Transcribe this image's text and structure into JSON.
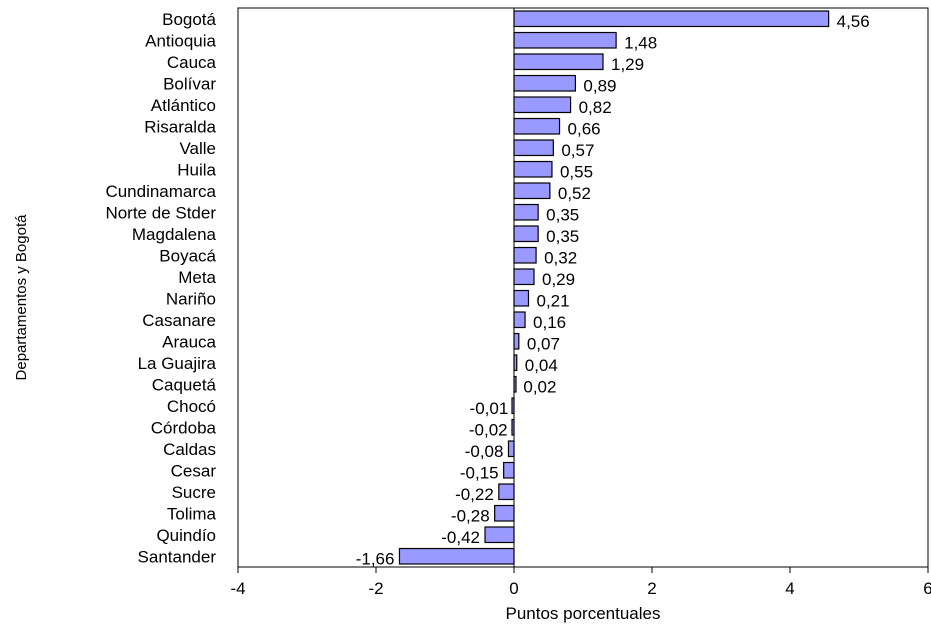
{
  "chart_data": {
    "type": "bar",
    "orientation": "horizontal",
    "title": "",
    "xlabel": "Puntos porcentuales",
    "ylabel": "Departamentos y Bogotá",
    "xlim": [
      -4,
      6
    ],
    "xticks": [
      "-4",
      "-2",
      "0",
      "2",
      "4",
      "6"
    ],
    "grid": false,
    "bar_color": "#9999ff",
    "bar_edge_color": "#000000",
    "categories": [
      "Bogotá",
      "Antioquia",
      "Cauca",
      "Bolívar",
      "Atlántico",
      "Risaralda",
      "Valle",
      "Huila",
      "Cundinamarca",
      "Norte de Stder",
      "Magdalena",
      "Boyacá",
      "Meta",
      "Nariño",
      "Casanare",
      "Arauca",
      "La Guajira",
      "Caquetá",
      "Chocó",
      "Córdoba",
      "Caldas",
      "Cesar",
      "Sucre",
      "Tolima",
      "Quindío",
      "Santander"
    ],
    "values": [
      4.56,
      1.48,
      1.29,
      0.89,
      0.82,
      0.66,
      0.57,
      0.55,
      0.52,
      0.35,
      0.35,
      0.32,
      0.29,
      0.21,
      0.16,
      0.07,
      0.04,
      0.02,
      -0.01,
      -0.02,
      -0.08,
      -0.15,
      -0.22,
      -0.28,
      -0.42,
      -1.66
    ],
    "value_labels": [
      "4,56",
      "1,48",
      "1,29",
      "0,89",
      "0,82",
      "0,66",
      "0,57",
      "0,55",
      "0,52",
      "0,35",
      "0,35",
      "0,32",
      "0,29",
      "0,21",
      "0,16",
      "0,07",
      "0,04",
      "0,02",
      "-0,01",
      "-0,02",
      "-0,08",
      "-0,15",
      "-0,22",
      "-0,28",
      "-0,42",
      "-1,66"
    ]
  }
}
